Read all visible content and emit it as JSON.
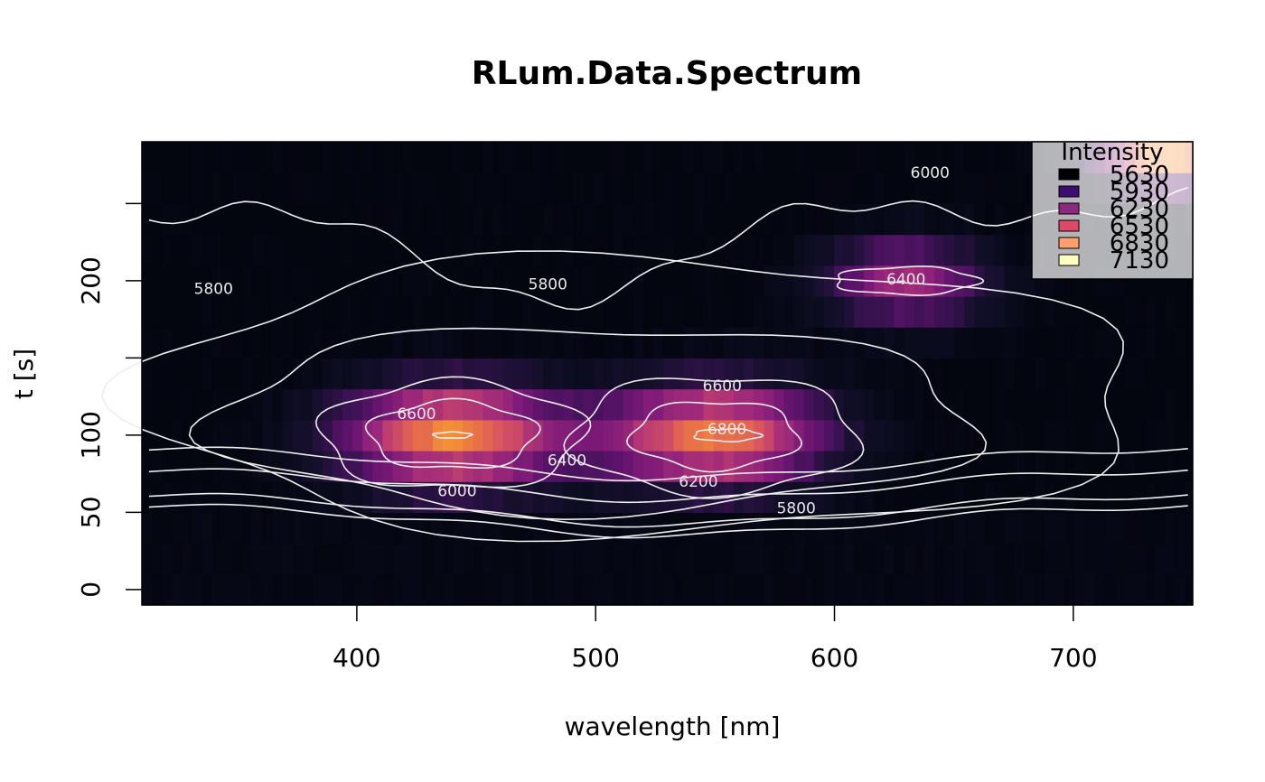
{
  "chart_data": {
    "type": "heatmap",
    "title": "RLum.Data.Spectrum",
    "xlabel": "wavelength [nm]",
    "ylabel": "t [s]",
    "xlim": [
      310,
      750
    ],
    "ylim": [
      -10,
      290
    ],
    "x_ticks": [
      400,
      500,
      600,
      700
    ],
    "y_ticks": [
      0,
      50,
      100,
      150,
      200,
      250
    ],
    "y_tick_labels": [
      "0",
      "50",
      "100",
      "",
      "200",
      ""
    ],
    "t_bins": [
      0,
      20,
      40,
      60,
      80,
      100,
      120,
      140,
      160,
      180,
      200,
      220,
      240,
      260,
      280
    ],
    "intensity_model": {
      "base": 5560,
      "early_time_level": 5600,
      "early_time_cutoff_s": 50,
      "peaks": [
        {
          "wavelength": 440,
          "t": 100,
          "amplitude": 1250
        },
        {
          "wavelength": 550,
          "t": 100,
          "amplitude": 1200
        },
        {
          "wavelength": 630,
          "t": 200,
          "amplitude": 800
        },
        {
          "wavelength": 740,
          "t": 285,
          "amplitude": 1400
        }
      ]
    },
    "contour_labels": [
      {
        "text": "6000",
        "wavelength": 640,
        "t": 270
      },
      {
        "text": "5800",
        "wavelength": 340,
        "t": 195
      },
      {
        "text": "5800",
        "wavelength": 480,
        "t": 198
      },
      {
        "text": "6400",
        "wavelength": 630,
        "t": 201
      },
      {
        "text": "6600",
        "wavelength": 425,
        "t": 114
      },
      {
        "text": "6600",
        "wavelength": 553,
        "t": 132
      },
      {
        "text": "6800",
        "wavelength": 555,
        "t": 104
      },
      {
        "text": "6400",
        "wavelength": 488,
        "t": 84
      },
      {
        "text": "6200",
        "wavelength": 543,
        "t": 70
      },
      {
        "text": "6000",
        "wavelength": 442,
        "t": 64
      },
      {
        "text": "5800",
        "wavelength": 584,
        "t": 53
      }
    ],
    "legend": {
      "title": "Intensity",
      "position": "top-right",
      "entries": [
        {
          "label": "5630",
          "color": "#000004"
        },
        {
          "label": "5930",
          "color": "#3b0f70"
        },
        {
          "label": "6230",
          "color": "#8c2981"
        },
        {
          "label": "6530",
          "color": "#de4968"
        },
        {
          "label": "6830",
          "color": "#fe9f6d"
        },
        {
          "label": "7130",
          "color": "#fcfdbf"
        }
      ]
    },
    "colormap": [
      "#03050f",
      "#0b0c1f",
      "#1b1033",
      "#3a1252",
      "#5c136b",
      "#7f1b78",
      "#a02a7a",
      "#c2416e",
      "#dd5a5a",
      "#ee7e3e",
      "#f6a533",
      "#fbd64e",
      "#fcf6b0"
    ]
  }
}
